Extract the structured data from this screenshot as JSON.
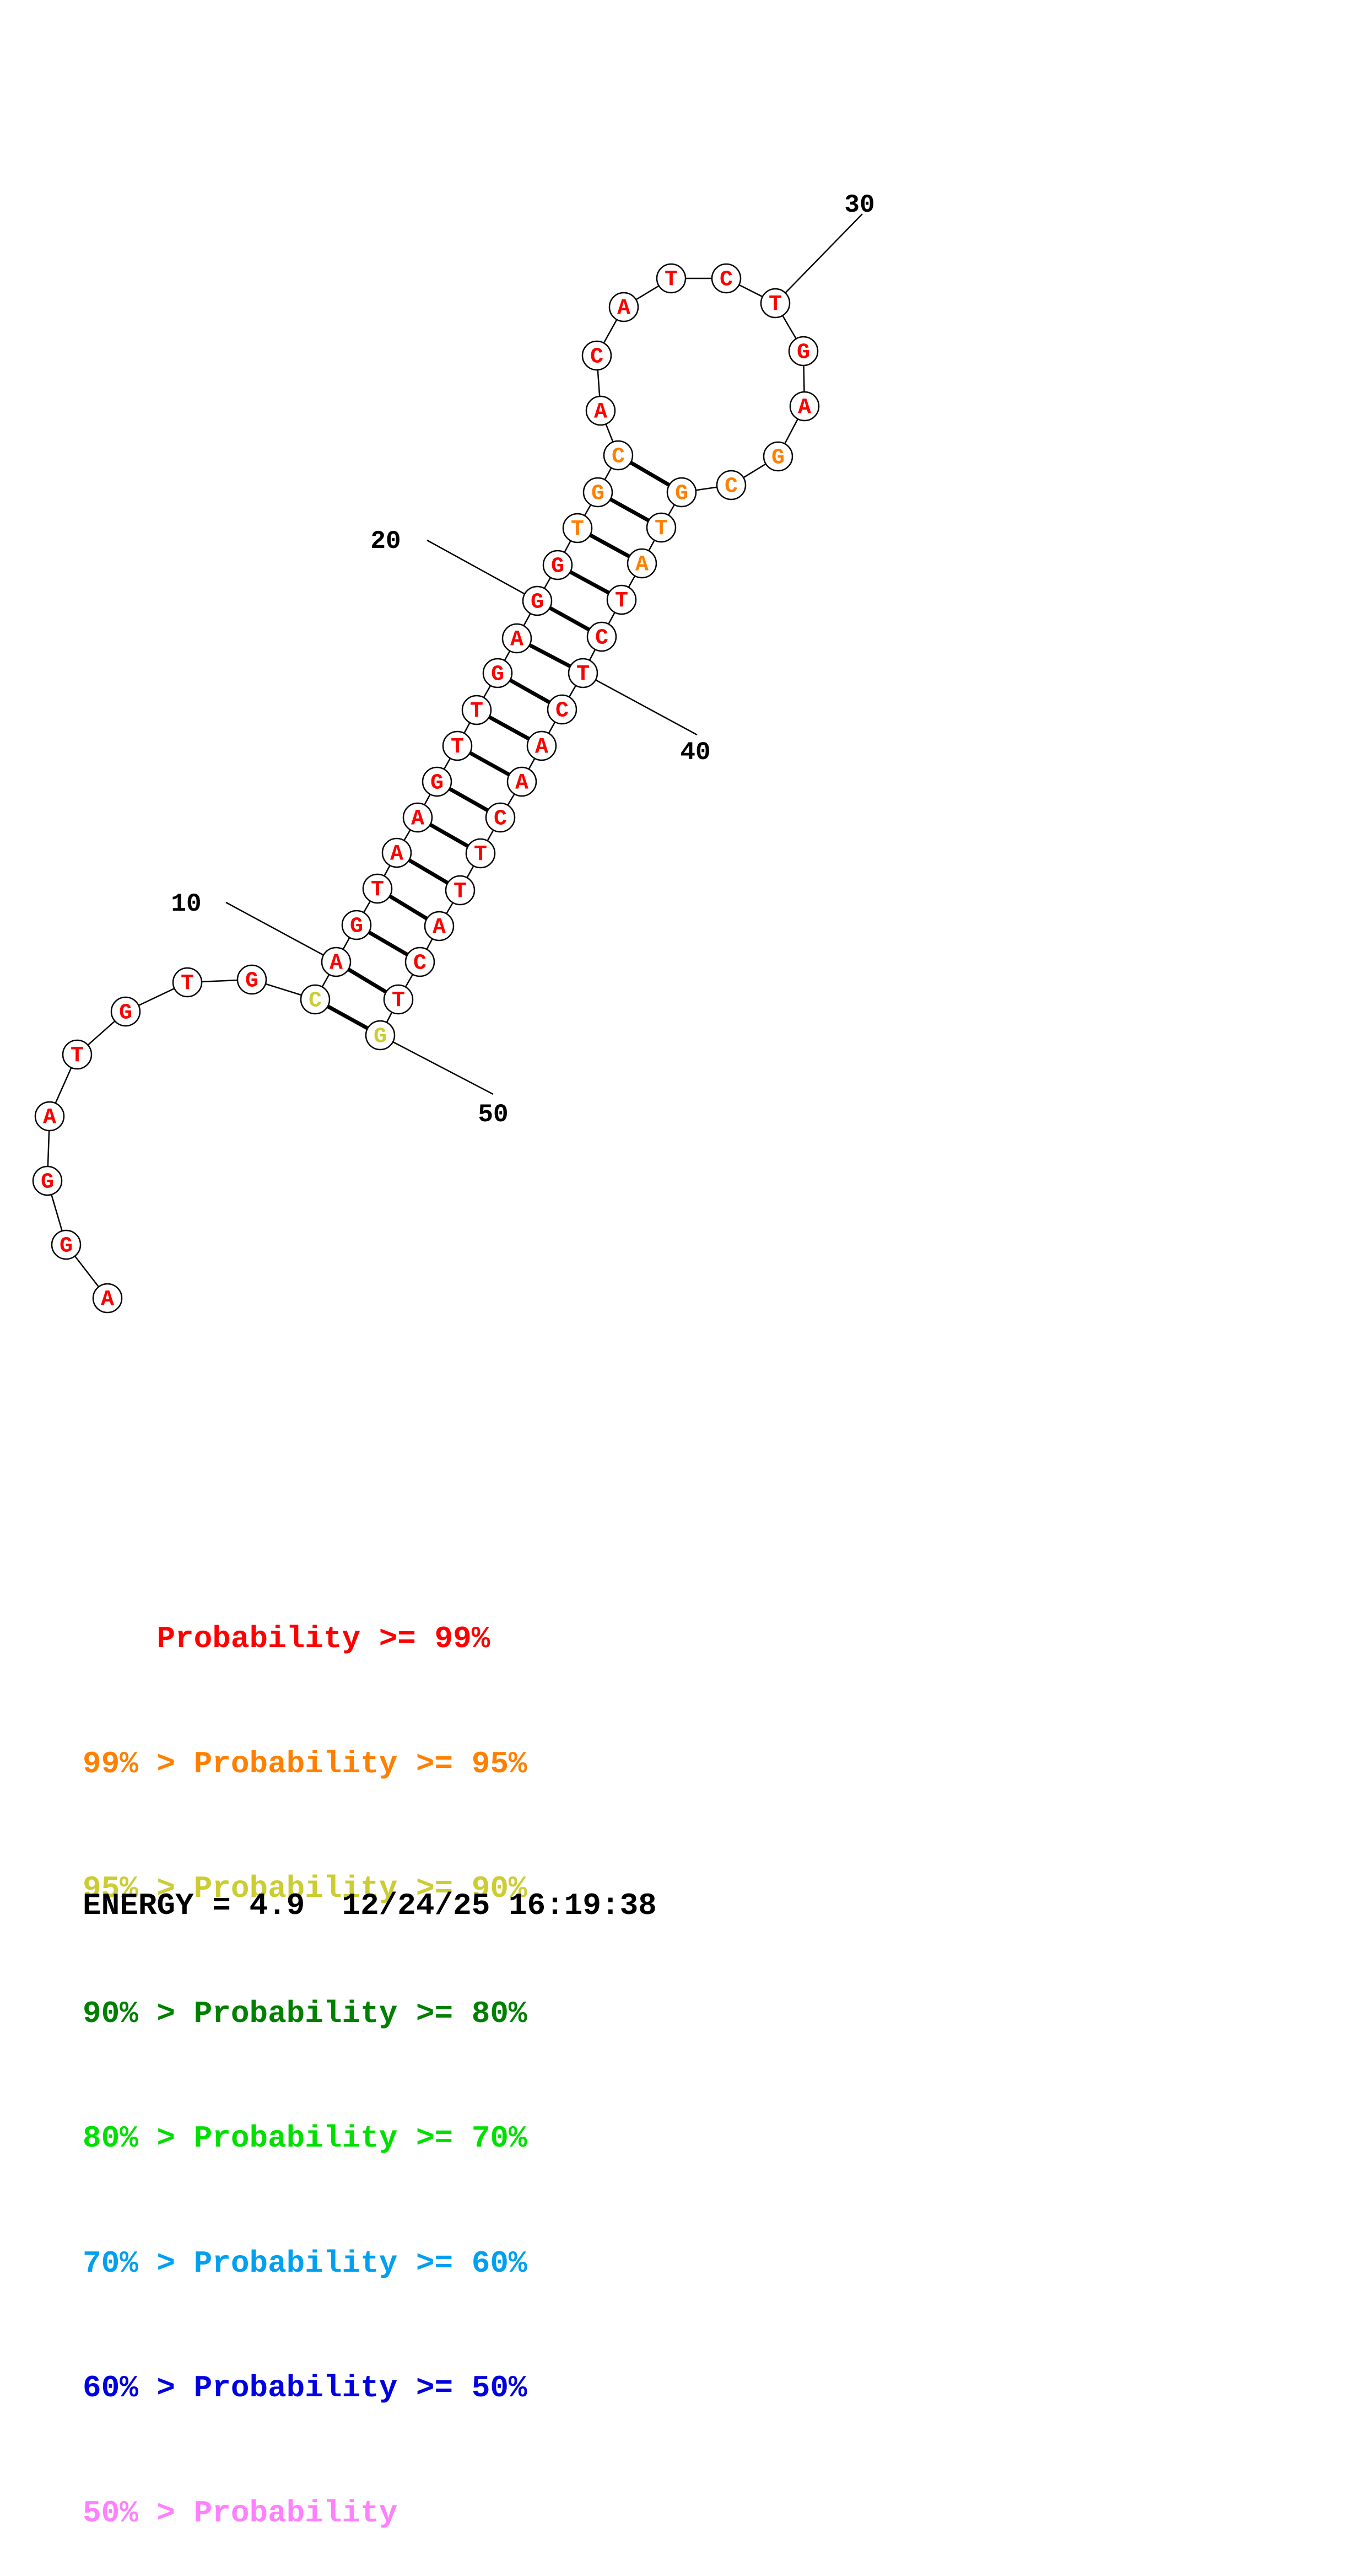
{
  "sequence": [
    "A",
    "G",
    "G",
    "A",
    "T",
    "G",
    "T",
    "G",
    "C",
    "A",
    "G",
    "T",
    "A",
    "A",
    "G",
    "T",
    "T",
    "G",
    "A",
    "G",
    "G",
    "T",
    "G",
    "C",
    "A",
    "C",
    "A",
    "T",
    "C",
    "T",
    "G",
    "A",
    "G",
    "C",
    "G",
    "T",
    "A",
    "T",
    "C",
    "T",
    "C",
    "A",
    "A",
    "C",
    "T",
    "T",
    "A",
    "C",
    "T",
    "G"
  ],
  "base_prob_class": [
    1,
    1,
    1,
    1,
    1,
    1,
    1,
    1,
    3,
    1,
    1,
    1,
    1,
    1,
    1,
    1,
    1,
    1,
    1,
    1,
    1,
    2,
    2,
    2,
    1,
    1,
    1,
    1,
    1,
    1,
    1,
    1,
    2,
    2,
    2,
    2,
    2,
    1,
    1,
    1,
    1,
    1,
    1,
    1,
    1,
    1,
    1,
    1,
    1,
    3
  ],
  "pairs": [
    [
      9,
      50
    ],
    [
      10,
      49
    ],
    [
      11,
      48
    ],
    [
      12,
      47
    ],
    [
      13,
      46
    ],
    [
      14,
      45
    ],
    [
      15,
      44
    ],
    [
      16,
      43
    ],
    [
      17,
      42
    ],
    [
      18,
      41
    ],
    [
      19,
      40
    ],
    [
      20,
      39
    ],
    [
      21,
      38
    ],
    [
      22,
      37
    ],
    [
      23,
      36
    ],
    [
      24,
      35
    ]
  ],
  "tick_labels": [
    {
      "index": 10,
      "text": "10"
    },
    {
      "index": 20,
      "text": "20"
    },
    {
      "index": 30,
      "text": "30"
    },
    {
      "index": 40,
      "text": "40"
    },
    {
      "index": 50,
      "text": "50"
    }
  ],
  "legend": [
    {
      "prefix": "    ",
      "label": "Probability >= 99%",
      "color": "#ff0000"
    },
    {
      "prefix": "99% > ",
      "label": "Probability >= 95%",
      "color": "#ff8000"
    },
    {
      "prefix": "95% > ",
      "label": "Probability >= 90%",
      "color": "#cccc33"
    },
    {
      "prefix": "90% > ",
      "label": "Probability >= 80%",
      "color": "#008000"
    },
    {
      "prefix": "80% > ",
      "label": "Probability >= 70%",
      "color": "#00e000"
    },
    {
      "prefix": "70% > ",
      "label": "Probability >= 60%",
      "color": "#00a0f0"
    },
    {
      "prefix": "60% > ",
      "label": "Probability >= 50%",
      "color": "#0000e0"
    },
    {
      "prefix": "50% > ",
      "label": "Probability",
      "color": "#ff80ff"
    }
  ],
  "footer": {
    "energy": "ENERGY = 4.9",
    "timestamp": "12/24/25 16:19:38"
  }
}
